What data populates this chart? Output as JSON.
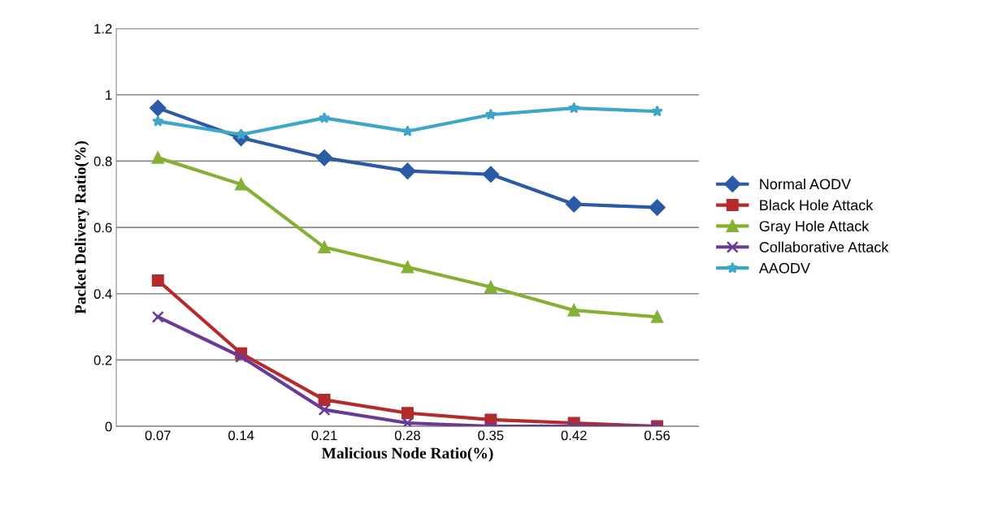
{
  "chart_data": {
    "type": "line",
    "xlabel": "Malicious Node Ratio(%)",
    "ylabel": "Packet Delivery Ratio(%)",
    "categories": [
      "0.07",
      "0.14",
      "0.21",
      "0.28",
      "0.35",
      "0.42",
      "0.56"
    ],
    "ylim": [
      0,
      1.2
    ],
    "yticks": [
      0,
      0.2,
      0.4,
      0.6,
      0.8,
      1,
      1.2
    ],
    "grid": "y",
    "legend": "right",
    "series": [
      {
        "name": "Normal AODV",
        "color": "#2b5aa6",
        "marker": "diamond",
        "values": [
          0.96,
          0.87,
          0.81,
          0.77,
          0.76,
          0.67,
          0.66
        ]
      },
      {
        "name": "Black Hole Attack",
        "color": "#b52a2a",
        "marker": "square",
        "values": [
          0.44,
          0.22,
          0.08,
          0.04,
          0.02,
          0.01,
          0
        ]
      },
      {
        "name": "Gray Hole Attack",
        "color": "#84b034",
        "marker": "triangle",
        "values": [
          0.81,
          0.73,
          0.54,
          0.48,
          0.42,
          0.35,
          0.33
        ]
      },
      {
        "name": "Collaborative Attack",
        "color": "#6a3b96",
        "marker": "cross",
        "values": [
          0.33,
          0.21,
          0.05,
          0.01,
          0,
          0,
          0
        ]
      },
      {
        "name": "AAODV",
        "color": "#3ea6c8",
        "marker": "star",
        "values": [
          0.92,
          0.88,
          0.93,
          0.89,
          0.94,
          0.96,
          0.95
        ]
      }
    ]
  }
}
